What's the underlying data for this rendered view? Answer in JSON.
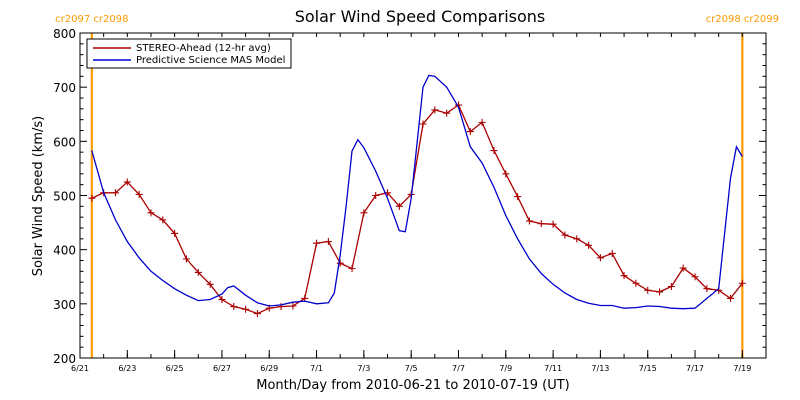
{
  "chart_data": {
    "type": "line",
    "title": "Solar Wind Speed Comparisons",
    "xlabel": "Month/Day from 2010-06-21 to 2010-07-19 (UT)",
    "ylabel": "Solar Wind Speed (km/s)",
    "xlim": [
      "2010-06-21",
      "2010-07-20"
    ],
    "ylim": [
      200,
      800
    ],
    "x_tick_labels": [
      {
        "date": "2010-06-21",
        "label": "6/21"
      },
      {
        "date": "2010-06-23",
        "label": "6/23"
      },
      {
        "date": "2010-06-25",
        "label": "6/25"
      },
      {
        "date": "2010-06-27",
        "label": "6/27"
      },
      {
        "date": "2010-06-29",
        "label": "6/29"
      },
      {
        "date": "2010-07-01",
        "label": "7/1"
      },
      {
        "date": "2010-07-03",
        "label": "7/3"
      },
      {
        "date": "2010-07-05",
        "label": "7/5"
      },
      {
        "date": "2010-07-07",
        "label": "7/7"
      },
      {
        "date": "2010-07-09",
        "label": "7/9"
      },
      {
        "date": "2010-07-11",
        "label": "7/11"
      },
      {
        "date": "2010-07-13",
        "label": "7/13"
      },
      {
        "date": "2010-07-15",
        "label": "7/15"
      },
      {
        "date": "2010-07-17",
        "label": "7/17"
      },
      {
        "date": "2010-07-19",
        "label": "7/19"
      }
    ],
    "y_tick_labels": [
      "200",
      "300",
      "400",
      "500",
      "600",
      "700",
      "800"
    ],
    "legend_position": "top-left",
    "grid": false,
    "series": [
      {
        "name": "STEREO-Ahead (12-hr avg)",
        "color": "#aa0000",
        "marker": "plus",
        "points": [
          [
            "2010-06-21 12:00",
            495
          ],
          [
            "2010-06-22 00:00",
            505
          ],
          [
            "2010-06-22 12:00",
            505
          ],
          [
            "2010-06-23 00:00",
            525
          ],
          [
            "2010-06-23 12:00",
            502
          ],
          [
            "2010-06-24 00:00",
            468
          ],
          [
            "2010-06-24 12:00",
            455
          ],
          [
            "2010-06-25 00:00",
            430
          ],
          [
            "2010-06-25 12:00",
            383
          ],
          [
            "2010-06-26 00:00",
            358
          ],
          [
            "2010-06-26 12:00",
            336
          ],
          [
            "2010-06-27 00:00",
            308
          ],
          [
            "2010-06-27 12:00",
            295
          ],
          [
            "2010-06-28 00:00",
            290
          ],
          [
            "2010-06-28 12:00",
            282
          ],
          [
            "2010-06-29 00:00",
            292
          ],
          [
            "2010-06-29 12:00",
            295
          ],
          [
            "2010-06-30 00:00",
            296
          ],
          [
            "2010-06-30 12:00",
            310
          ],
          [
            "2010-07-01 00:00",
            412
          ],
          [
            "2010-07-01 12:00",
            415
          ],
          [
            "2010-07-02 00:00",
            375
          ],
          [
            "2010-07-02 12:00",
            365
          ],
          [
            "2010-07-03 00:00",
            468
          ],
          [
            "2010-07-03 12:00",
            500
          ],
          [
            "2010-07-04 00:00",
            505
          ],
          [
            "2010-07-04 12:00",
            480
          ],
          [
            "2010-07-05 00:00",
            502
          ],
          [
            "2010-07-05 12:00",
            632
          ],
          [
            "2010-07-06 00:00",
            658
          ],
          [
            "2010-07-06 12:00",
            652
          ],
          [
            "2010-07-07 00:00",
            667
          ],
          [
            "2010-07-07 12:00",
            618
          ],
          [
            "2010-07-08 00:00",
            635
          ],
          [
            "2010-07-08 12:00",
            583
          ],
          [
            "2010-07-09 00:00",
            540
          ],
          [
            "2010-07-09 12:00",
            498
          ],
          [
            "2010-07-10 00:00",
            453
          ],
          [
            "2010-07-10 12:00",
            448
          ],
          [
            "2010-07-11 00:00",
            447
          ],
          [
            "2010-07-11 12:00",
            427
          ],
          [
            "2010-07-12 00:00",
            420
          ],
          [
            "2010-07-12 12:00",
            408
          ],
          [
            "2010-07-13 00:00",
            385
          ],
          [
            "2010-07-13 12:00",
            393
          ],
          [
            "2010-07-14 00:00",
            352
          ],
          [
            "2010-07-14 12:00",
            338
          ],
          [
            "2010-07-15 00:00",
            325
          ],
          [
            "2010-07-15 12:00",
            322
          ],
          [
            "2010-07-16 00:00",
            332
          ],
          [
            "2010-07-16 12:00",
            366
          ],
          [
            "2010-07-17 00:00",
            350
          ],
          [
            "2010-07-17 12:00",
            328
          ],
          [
            "2010-07-18 00:00",
            325
          ],
          [
            "2010-07-18 12:00",
            310
          ],
          [
            "2010-07-19 00:00",
            338
          ]
        ]
      },
      {
        "name": "Predictive Science MAS Model",
        "color": "#0000cc",
        "marker": "none",
        "points": [
          [
            "2010-06-21 12:00",
            583
          ],
          [
            "2010-06-22 00:00",
            505
          ],
          [
            "2010-06-22 12:00",
            455
          ],
          [
            "2010-06-23 00:00",
            415
          ],
          [
            "2010-06-23 12:00",
            385
          ],
          [
            "2010-06-24 00:00",
            360
          ],
          [
            "2010-06-24 12:00",
            343
          ],
          [
            "2010-06-25 00:00",
            328
          ],
          [
            "2010-06-25 12:00",
            316
          ],
          [
            "2010-06-26 00:00",
            306
          ],
          [
            "2010-06-26 12:00",
            308
          ],
          [
            "2010-06-27 00:00",
            318
          ],
          [
            "2010-06-27 06:00",
            330
          ],
          [
            "2010-06-27 12:00",
            333
          ],
          [
            "2010-06-28 00:00",
            316
          ],
          [
            "2010-06-28 12:00",
            302
          ],
          [
            "2010-06-29 00:00",
            296
          ],
          [
            "2010-06-29 12:00",
            298
          ],
          [
            "2010-06-30 00:00",
            303
          ],
          [
            "2010-06-30 12:00",
            305
          ],
          [
            "2010-07-01 00:00",
            300
          ],
          [
            "2010-07-01 12:00",
            302
          ],
          [
            "2010-07-01 18:00",
            320
          ],
          [
            "2010-07-02 00:00",
            390
          ],
          [
            "2010-07-02 06:00",
            480
          ],
          [
            "2010-07-02 12:00",
            582
          ],
          [
            "2010-07-02 18:00",
            603
          ],
          [
            "2010-07-03 00:00",
            588
          ],
          [
            "2010-07-03 12:00",
            545
          ],
          [
            "2010-07-04 00:00",
            495
          ],
          [
            "2010-07-04 12:00",
            435
          ],
          [
            "2010-07-04 18:00",
            433
          ],
          [
            "2010-07-05 00:00",
            495
          ],
          [
            "2010-07-05 12:00",
            700
          ],
          [
            "2010-07-05 18:00",
            722
          ],
          [
            "2010-07-06 00:00",
            720
          ],
          [
            "2010-07-06 12:00",
            700
          ],
          [
            "2010-07-07 00:00",
            663
          ],
          [
            "2010-07-07 12:00",
            590
          ],
          [
            "2010-07-08 00:00",
            560
          ],
          [
            "2010-07-08 12:00",
            515
          ],
          [
            "2010-07-09 00:00",
            463
          ],
          [
            "2010-07-09 12:00",
            420
          ],
          [
            "2010-07-10 00:00",
            383
          ],
          [
            "2010-07-10 12:00",
            356
          ],
          [
            "2010-07-11 00:00",
            336
          ],
          [
            "2010-07-11 12:00",
            320
          ],
          [
            "2010-07-12 00:00",
            308
          ],
          [
            "2010-07-12 12:00",
            301
          ],
          [
            "2010-07-13 00:00",
            297
          ],
          [
            "2010-07-13 12:00",
            297
          ],
          [
            "2010-07-14 00:00",
            292
          ],
          [
            "2010-07-14 12:00",
            293
          ],
          [
            "2010-07-15 00:00",
            296
          ],
          [
            "2010-07-15 12:00",
            295
          ],
          [
            "2010-07-16 00:00",
            292
          ],
          [
            "2010-07-16 12:00",
            291
          ],
          [
            "2010-07-17 00:00",
            292
          ],
          [
            "2010-07-17 12:00",
            310
          ],
          [
            "2010-07-18 00:00",
            328
          ],
          [
            "2010-07-18 06:00",
            430
          ],
          [
            "2010-07-18 12:00",
            532
          ],
          [
            "2010-07-18 18:00",
            590
          ],
          [
            "2010-07-19 00:00",
            572
          ]
        ]
      }
    ],
    "markers": [
      {
        "date": "2010-06-21 12:00",
        "color": "#ff9900",
        "labels": [
          "cr2097",
          "cr2098"
        ]
      },
      {
        "date": "2010-07-19 00:00",
        "color": "#ff9900",
        "labels": [
          "cr2098",
          "cr2099"
        ]
      }
    ],
    "colors": {
      "axes": "#000000",
      "background": "#ffffff",
      "marker_line": "#ff9900"
    }
  }
}
